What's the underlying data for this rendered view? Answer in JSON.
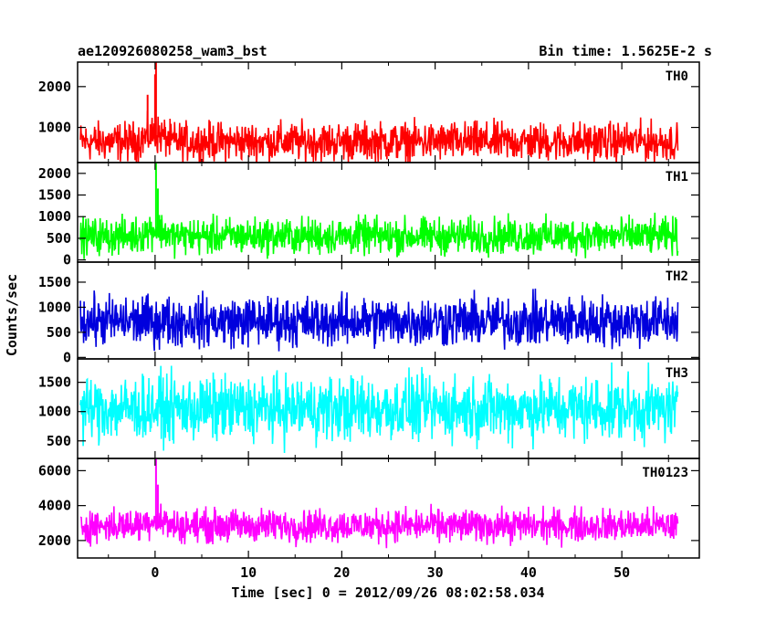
{
  "header": {
    "title": "ae120926080258_wam3_bst",
    "bin_time": "Bin time: 1.5625E-2 s"
  },
  "chart_data": {
    "type": "line",
    "title": "ae120926080258_wam3_bst",
    "subtitle": "Bin time: 1.5625E-2 s",
    "xlabel": "Time [sec] 0 = 2012/09/26 08:02:58.034",
    "ylabel": "Counts/sec",
    "xlim": [
      -8.3,
      58.3
    ],
    "x_ticks": [
      "0",
      "10",
      "20",
      "30",
      "40",
      "50"
    ],
    "x_range_data": [
      -8.0,
      56.0
    ],
    "bin_time_s": 0.015625,
    "grid": false,
    "legend": "none",
    "panels": [
      {
        "name": "TH0",
        "color": "#ff0000",
        "ylim": [
          140,
          2600
        ],
        "y_ticks": [
          "1000",
          "2000"
        ],
        "baseline": 650,
        "noise": 360,
        "spikes": [
          {
            "x": 0.1,
            "y": 2600
          },
          {
            "x": 0.0,
            "y": 2300
          },
          {
            "x": -0.8,
            "y": 1800
          }
        ]
      },
      {
        "name": "TH1",
        "color": "#00ff00",
        "ylim": [
          -50,
          2250
        ],
        "y_ticks": [
          "0",
          "500",
          "1000",
          "1500",
          "2000"
        ],
        "baseline": 550,
        "noise": 320,
        "spikes": [
          {
            "x": 0.1,
            "y": 2250
          },
          {
            "x": 0.3,
            "y": 1650
          }
        ]
      },
      {
        "name": "TH2",
        "color": "#0000dd",
        "ylim": [
          -30,
          1900
        ],
        "y_ticks": [
          "0",
          "500",
          "1000",
          "1500"
        ],
        "baseline": 720,
        "noise": 380,
        "spikes": []
      },
      {
        "name": "TH3",
        "color": "#00ffff",
        "ylim": [
          200,
          1900
        ],
        "y_ticks": [
          "500",
          "1000",
          "1500"
        ],
        "baseline": 1050,
        "noise": 420,
        "spikes": []
      },
      {
        "name": "TH0123",
        "color": "#ff00ff",
        "ylim": [
          1000,
          6700
        ],
        "y_ticks": [
          "2000",
          "4000",
          "6000"
        ],
        "baseline": 2850,
        "noise": 720,
        "spikes": [
          {
            "x": 0.1,
            "y": 6700
          },
          {
            "x": 0.3,
            "y": 5200
          }
        ]
      }
    ]
  }
}
